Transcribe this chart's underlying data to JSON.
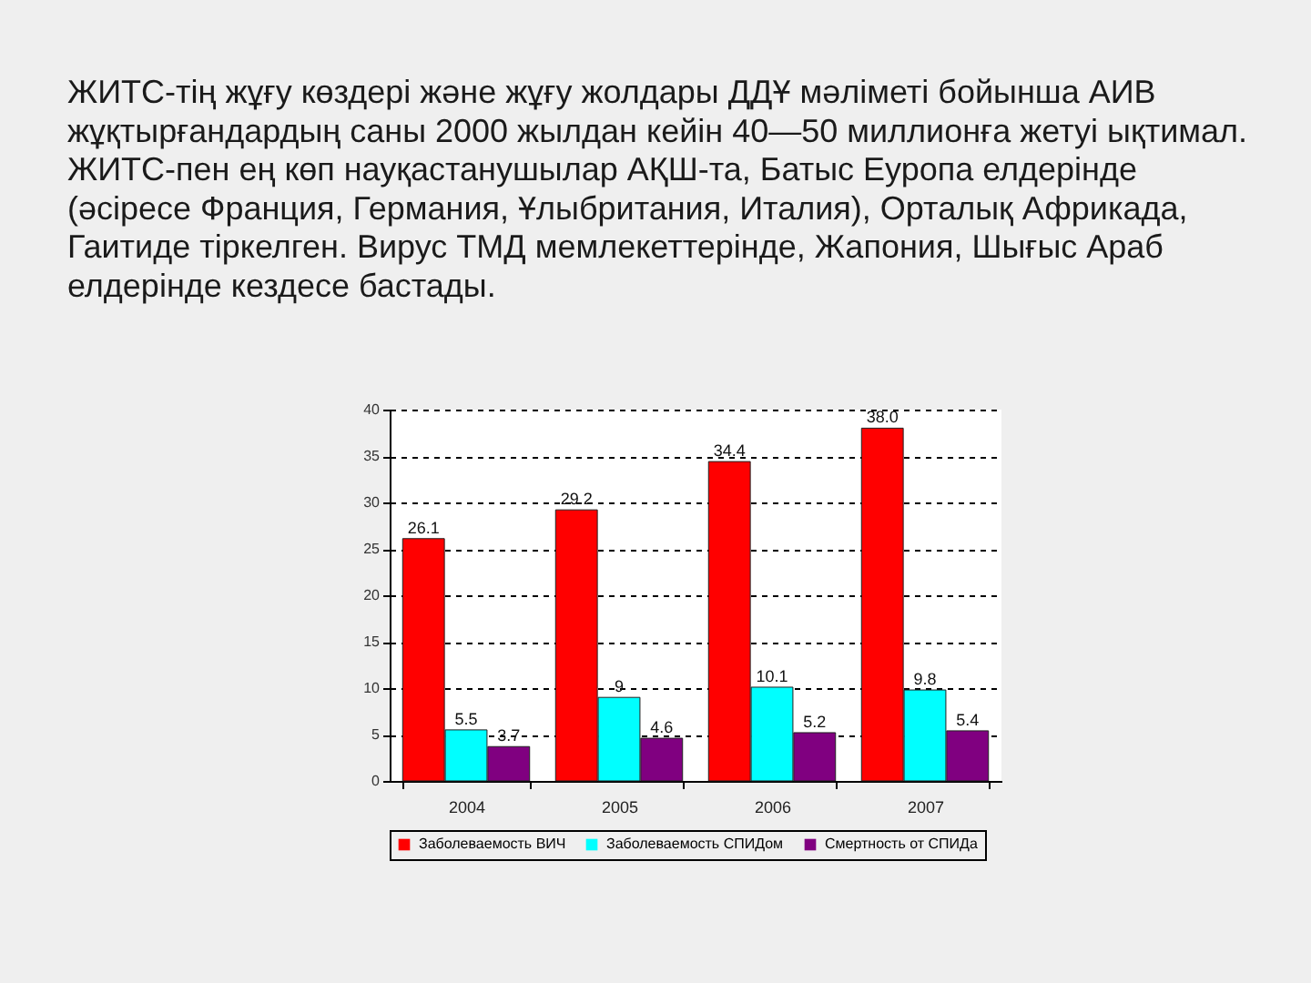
{
  "chart_data": {
    "type": "bar",
    "title": "ЖИТС-тің жұғу көздері және жұғу жолдары ДДҰ мәліметі бойынша АИВ\nжұқтырғандардың саны 2000 жылдан кейін 40—50 миллионға жетуі ықтимал.\nЖИТС-пен ең көп науқастанушылар АҚШ-та, Батыс Еуропа елдерінде\n(әсіресе Франция, Германия, Ұлыбритания, Италия), Орталық Африкада,\nГаитиде тіркелген. Вирус ТМД мемлекеттерінде, Жапония, Шығыс Араб\nелдерінде кездесе бастады.",
    "categories": [
      "2004",
      "2005",
      "2006",
      "2007"
    ],
    "series": [
      {
        "name": "Заболеваемость ВИЧ",
        "color": "#ff0000",
        "values": [
          26.1,
          29.2,
          34.4,
          38.0
        ],
        "value_labels": [
          "26.1",
          "29.2",
          "34.4",
          "38.0"
        ]
      },
      {
        "name": "Заболеваемость СПИДом",
        "color": "#00ffff",
        "values": [
          5.5,
          9,
          10.1,
          9.8
        ],
        "value_labels": [
          "5.5",
          "9",
          "10.1",
          "9.8"
        ]
      },
      {
        "name": "Смертность от СПИДа",
        "color": "#800080",
        "values": [
          3.7,
          4.6,
          5.2,
          5.4
        ],
        "value_labels": [
          "3.7",
          "4.6",
          "5.2",
          "5.4"
        ]
      }
    ],
    "ylim": [
      0,
      40
    ],
    "yticks": [
      0,
      5,
      10,
      15,
      20,
      25,
      30,
      35,
      40
    ],
    "grid": "y",
    "legend": "bottom"
  }
}
